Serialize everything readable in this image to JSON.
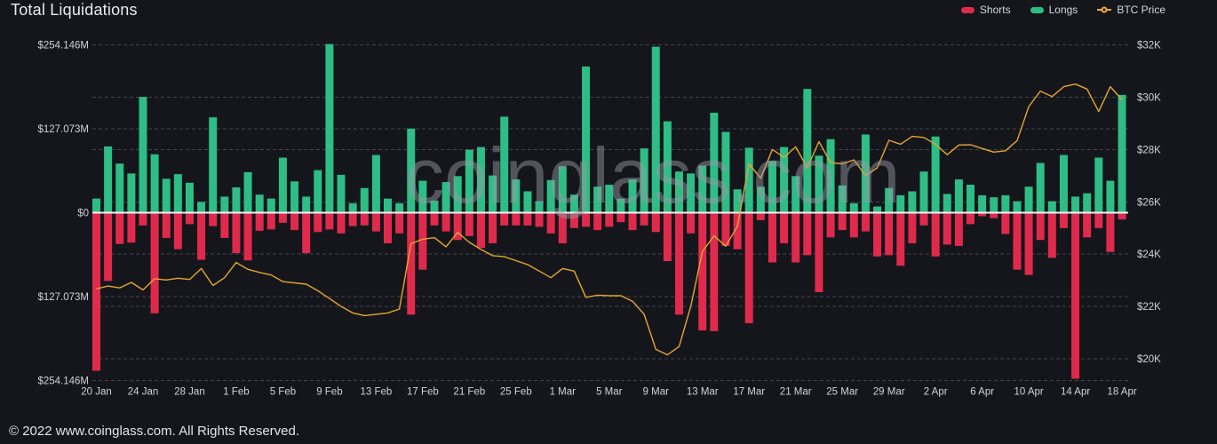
{
  "header": {
    "title": "Total Liquidations"
  },
  "legend": {
    "shorts": {
      "label": "Shorts",
      "color": "#e02a4c"
    },
    "longs": {
      "label": "Longs",
      "color": "#2ebd85"
    },
    "btc": {
      "label": "BTC Price",
      "color": "#ecb02f"
    }
  },
  "watermark": "coinglass.com",
  "footer": {
    "copyright": "© 2022 www.coinglass.com. All Rights Reserved."
  },
  "colors": {
    "background": "#15161c",
    "grid": "#42444c",
    "zero_line": "#f0f2f5",
    "axis_text": "#ced2d8",
    "longs": "#2ebd85",
    "shorts": "#e02a4c",
    "price": "#e2a62f"
  },
  "chart_data": {
    "type": "bar+line",
    "title": "Total Liquidations",
    "grid": "horizontal-dashed",
    "legend_position": "top-right",
    "x": [
      "20 Jan",
      "21 Jan",
      "22 Jan",
      "23 Jan",
      "24 Jan",
      "25 Jan",
      "26 Jan",
      "27 Jan",
      "28 Jan",
      "29 Jan",
      "30 Jan",
      "31 Jan",
      "1 Feb",
      "2 Feb",
      "3 Feb",
      "4 Feb",
      "5 Feb",
      "6 Feb",
      "7 Feb",
      "8 Feb",
      "9 Feb",
      "10 Feb",
      "11 Feb",
      "12 Feb",
      "13 Feb",
      "14 Feb",
      "15 Feb",
      "16 Feb",
      "17 Feb",
      "18 Feb",
      "19 Feb",
      "20 Feb",
      "21 Feb",
      "22 Feb",
      "23 Feb",
      "24 Feb",
      "25 Feb",
      "26 Feb",
      "27 Feb",
      "28 Feb",
      "1 Mar",
      "2 Mar",
      "3 Mar",
      "4 Mar",
      "5 Mar",
      "6 Mar",
      "7 Mar",
      "8 Mar",
      "9 Mar",
      "10 Mar",
      "11 Mar",
      "12 Mar",
      "13 Mar",
      "14 Mar",
      "15 Mar",
      "16 Mar",
      "17 Mar",
      "18 Mar",
      "19 Mar",
      "20 Mar",
      "21 Mar",
      "22 Mar",
      "23 Mar",
      "24 Mar",
      "25 Mar",
      "26 Mar",
      "27 Mar",
      "28 Mar",
      "29 Mar",
      "30 Mar",
      "31 Mar",
      "1 Apr",
      "2 Apr",
      "3 Apr",
      "4 Apr",
      "5 Apr",
      "6 Apr",
      "7 Apr",
      "8 Apr",
      "9 Apr",
      "10 Apr",
      "11 Apr",
      "12 Apr",
      "13 Apr",
      "14 Apr",
      "15 Apr",
      "16 Apr",
      "17 Apr",
      "18 Apr"
    ],
    "series": [
      {
        "name": "Longs",
        "type": "bar",
        "axis": "left",
        "unit": "USD millions",
        "direction": "up",
        "values": [
          20,
          99,
          73,
          58,
          174,
          87,
          50,
          57,
          44,
          15,
          143,
          23,
          37,
          60,
          26,
          20,
          82,
          46,
          23,
          63,
          254,
          56,
          13,
          36,
          86,
          20,
          13,
          126,
          47,
          17,
          45,
          54,
          94,
          98,
          55,
          144,
          49,
          31,
          16,
          48,
          69,
          26,
          220,
          38,
          41,
          20,
          49,
          96,
          250,
          137,
          61,
          58,
          70,
          150,
          121,
          34,
          97,
          38,
          77,
          98,
          54,
          186,
          85,
          110,
          40,
          13,
          117,
          8,
          36,
          25,
          31,
          61,
          114,
          27,
          49,
          41,
          25,
          22,
          25,
          16,
          38,
          74,
          16,
          86,
          23,
          28,
          82,
          47,
          177
        ]
      },
      {
        "name": "Shorts",
        "type": "bar",
        "axis": "left",
        "unit": "USD millions",
        "direction": "down",
        "values": [
          238,
          102,
          46,
          44,
          18,
          151,
          37,
          54,
          16,
          70,
          19,
          37,
          60,
          71,
          26,
          24,
          14,
          25,
          60,
          28,
          24,
          30,
          19,
          18,
          27,
          45,
          30,
          153,
          85,
          18,
          27,
          40,
          34,
          52,
          45,
          18,
          18,
          18,
          20,
          30,
          45,
          22,
          20,
          25,
          20,
          13,
          25,
          18,
          28,
          72,
          153,
          30,
          177,
          178,
          49,
          54,
          166,
          10,
          74,
          45,
          74,
          63,
          119,
          36,
          25,
          36,
          27,
          65,
          63,
          79,
          45,
          18,
          65,
          47,
          49,
          16,
          4,
          7,
          31,
          85,
          93,
          40,
          67,
          22,
          250,
          36,
          22,
          58,
          9
        ]
      },
      {
        "name": "BTC Price",
        "type": "line",
        "axis": "right",
        "unit": "USD thousands",
        "values": [
          22.67,
          22.78,
          22.71,
          22.92,
          22.63,
          23.06,
          23.01,
          23.08,
          23.03,
          23.45,
          22.8,
          23.1,
          23.68,
          23.42,
          23.3,
          23.2,
          22.95,
          22.9,
          22.85,
          22.6,
          22.3,
          22.0,
          21.75,
          21.65,
          21.7,
          21.75,
          21.9,
          24.4,
          24.57,
          24.63,
          24.28,
          24.83,
          24.45,
          24.18,
          23.94,
          23.9,
          23.75,
          23.6,
          23.35,
          23.1,
          23.45,
          23.35,
          22.35,
          22.43,
          22.41,
          22.41,
          22.2,
          21.7,
          20.36,
          20.15,
          20.47,
          22.0,
          24.1,
          24.7,
          24.3,
          25.06,
          27.45,
          26.9,
          28.0,
          27.7,
          28.1,
          27.3,
          28.3,
          27.5,
          27.45,
          27.6,
          27.0,
          27.3,
          28.35,
          28.2,
          28.5,
          28.46,
          28.2,
          27.8,
          28.17,
          28.18,
          28.04,
          27.9,
          27.95,
          28.34,
          29.64,
          30.23,
          30.02,
          30.4,
          30.5,
          30.31,
          29.45,
          30.4,
          29.9
        ]
      }
    ],
    "axes": {
      "left_labels": [
        "$254.146M",
        "$127.073M",
        "$0",
        "$127.073M",
        "$254.146M"
      ],
      "left_values": [
        254.146,
        127.073,
        0,
        -127.073,
        -254.146
      ],
      "right_labels": [
        "$32K",
        "$30K",
        "$28K",
        "$26K",
        "$24K",
        "$22K",
        "$20K"
      ],
      "right_values": [
        32,
        30,
        28,
        26,
        24,
        22,
        20
      ],
      "x_tick_labels": [
        "20 Jan",
        "24 Jan",
        "28 Jan",
        "1 Feb",
        "5 Feb",
        "9 Feb",
        "13 Feb",
        "17 Feb",
        "21 Feb",
        "25 Feb",
        "1 Mar",
        "5 Mar",
        "9 Mar",
        "13 Mar",
        "17 Mar",
        "21 Mar",
        "25 Mar",
        "29 Mar",
        "2 Apr",
        "6 Apr",
        "10 Apr",
        "14 Apr",
        "18 Apr"
      ],
      "x_tick_every": 4
    },
    "ylim_left": [
      -254.146,
      254.146
    ],
    "ylim_right_top": 32
  }
}
